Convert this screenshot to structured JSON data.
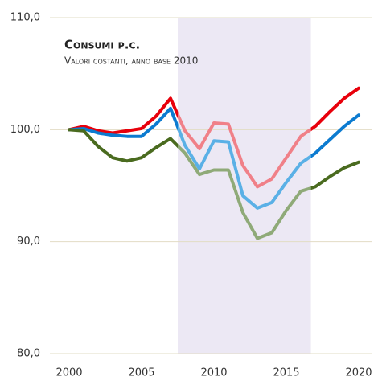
{
  "chart_data": {
    "type": "line",
    "title": "Consumi p.c.",
    "subtitle": "Valori costanti, anno base 2010",
    "x": [
      2000,
      2001,
      2002,
      2003,
      2004,
      2005,
      2006,
      2007,
      2008,
      2009,
      2010,
      2011,
      2012,
      2013,
      2014,
      2015,
      2016,
      2017,
      2018,
      2019,
      2020
    ],
    "series": [
      {
        "color": "#e8000b",
        "highlight_color": "#f08088",
        "values": [
          100,
          100.3,
          99.9,
          99.7,
          99.9,
          100.1,
          101.2,
          102.8,
          99.9,
          98.3,
          100.6,
          100.5,
          96.8,
          94.9,
          95.6,
          97.5,
          99.4,
          100.3,
          101.6,
          102.8,
          103.7
        ]
      },
      {
        "color": "#0c7bd0",
        "highlight_color": "#5ab0e6",
        "values": [
          100,
          100.1,
          99.7,
          99.5,
          99.4,
          99.4,
          100.5,
          101.9,
          98.6,
          96.5,
          99.0,
          98.9,
          94.1,
          93.0,
          93.5,
          95.3,
          97.0,
          97.9,
          99.1,
          100.3,
          101.3
        ]
      },
      {
        "color": "#4a6b1f",
        "highlight_color": "#8faa78",
        "values": [
          100,
          99.9,
          98.5,
          97.5,
          97.2,
          97.5,
          98.4,
          99.2,
          97.9,
          96.0,
          96.4,
          96.4,
          92.6,
          90.3,
          90.8,
          92.8,
          94.5,
          94.9,
          95.8,
          96.6,
          97.1
        ]
      }
    ],
    "highlight": {
      "x": [
        2007.5,
        2016.7
      ],
      "color": "#ece8f4"
    },
    "xlim": [
      2000,
      2020
    ],
    "xticks": [
      2000,
      2005,
      2010,
      2015,
      2020
    ],
    "ylim": [
      80,
      110
    ],
    "yticks": [
      {
        "value": 80,
        "label": "80,0"
      },
      {
        "value": 90,
        "label": "90,0"
      },
      {
        "value": 100,
        "label": "100,0"
      },
      {
        "value": 110,
        "label": "110,0"
      }
    ],
    "grid": true
  }
}
